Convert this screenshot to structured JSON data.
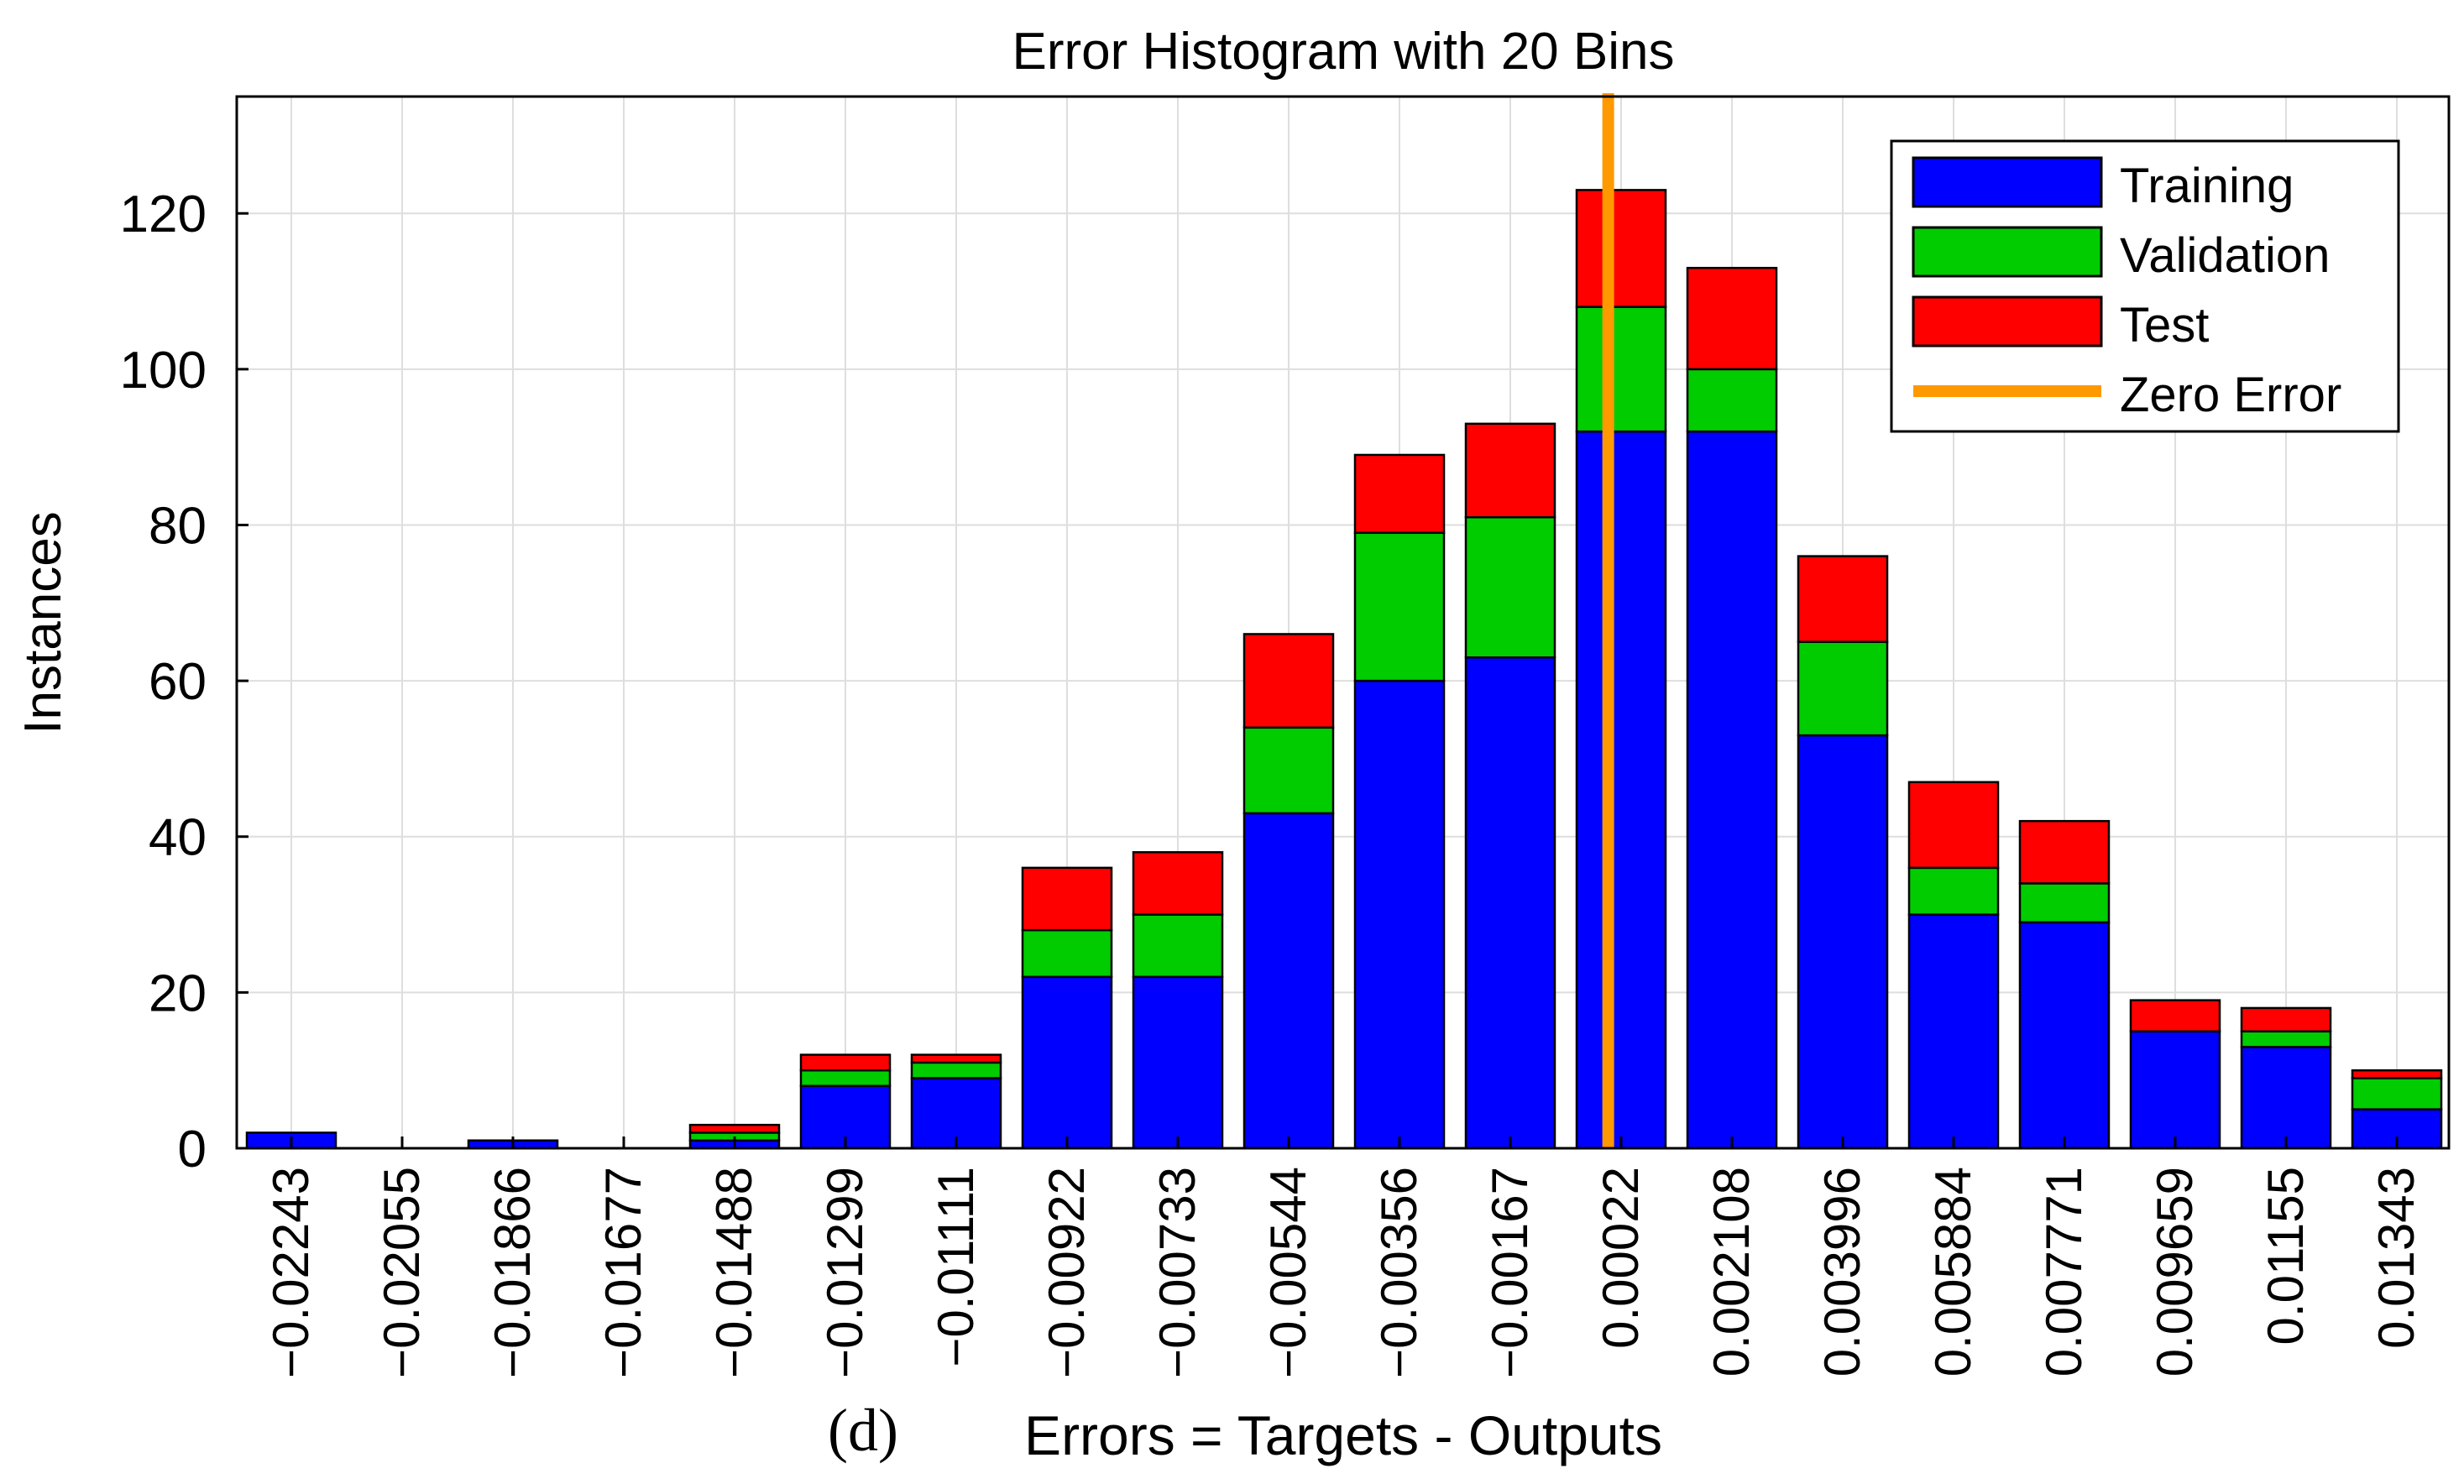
{
  "panel_label": "(d)",
  "colors": {
    "training": "#0000ff",
    "validation": "#00cc00",
    "test": "#ff0000",
    "zero_error": "#ff9900",
    "grid": "#dedede",
    "text": "#000000"
  },
  "legend": {
    "placement": "top-right",
    "training": "Training",
    "validation": "Validation",
    "test": "Test",
    "zero_error": "Zero Error"
  },
  "chart_data": {
    "type": "bar",
    "stacked": true,
    "title": "Error Histogram with 20 Bins",
    "xlabel": "Errors = Targets - Outputs",
    "ylabel": "Instances",
    "ylim": [
      0,
      135
    ],
    "yticks": [
      0,
      20,
      40,
      60,
      80,
      100,
      120
    ],
    "grid": true,
    "categories": [
      "−0.02243",
      "−0.02055",
      "−0.01866",
      "−0.01677",
      "−0.01488",
      "−0.01299",
      "−0.01111",
      "−0.00922",
      "−0.00733",
      "−0.00544",
      "−0.00356",
      "−0.00167",
      "0.00022",
      "0.002108",
      "0.003996",
      "0.005884",
      "0.007771",
      "0.009659",
      "0.01155",
      "0.01343"
    ],
    "series": [
      {
        "name": "Training",
        "values": [
          2,
          0,
          1,
          0,
          1,
          8,
          9,
          22,
          22,
          43,
          60,
          63,
          92,
          92,
          53,
          30,
          29,
          15,
          13,
          5
        ]
      },
      {
        "name": "Validation",
        "values": [
          0,
          0,
          0,
          0,
          1,
          2,
          2,
          6,
          8,
          11,
          19,
          18,
          16,
          8,
          12,
          6,
          5,
          0,
          2,
          4
        ]
      },
      {
        "name": "Test",
        "values": [
          0,
          0,
          0,
          0,
          1,
          2,
          1,
          8,
          8,
          12,
          10,
          12,
          15,
          13,
          11,
          11,
          8,
          4,
          3,
          1
        ]
      }
    ],
    "zero_error_x": 0
  }
}
